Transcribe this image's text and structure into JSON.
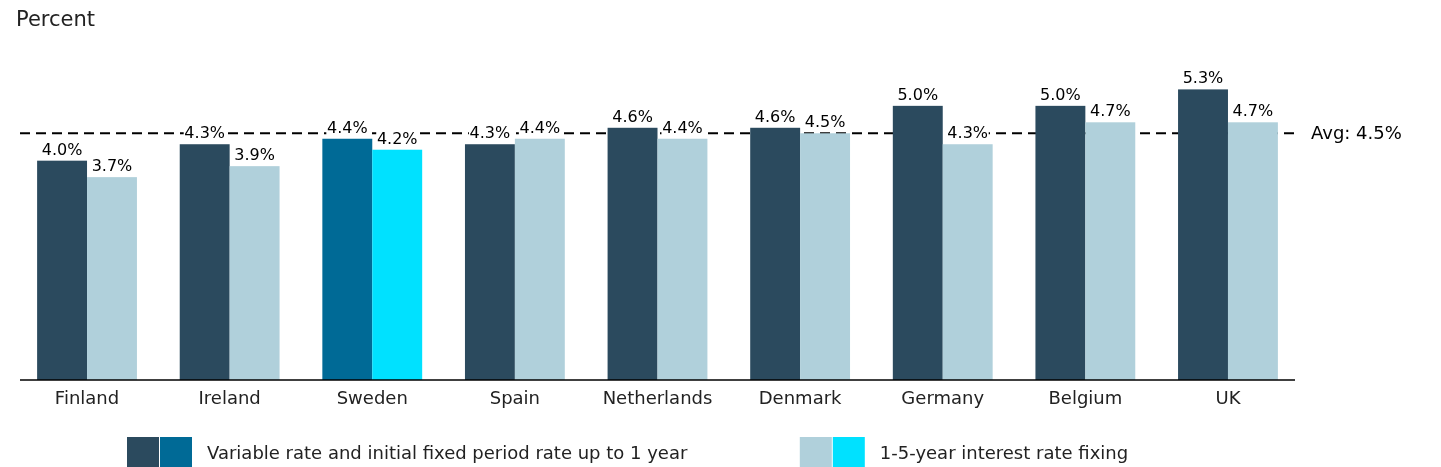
{
  "chart_data": {
    "type": "bar",
    "ylabel": "Percent",
    "categories": [
      "Finland",
      "Ireland",
      "Sweden",
      "Spain",
      "Netherlands",
      "Denmark",
      "Germany",
      "Belgium",
      "UK"
    ],
    "series": [
      {
        "name": "Variable rate and initial fixed period rate up to 1 year",
        "color": "#2b4a5e",
        "colors": [
          "#2b4a5e",
          "#2b4a5e",
          "#006a96",
          "#2b4a5e",
          "#2b4a5e",
          "#2b4a5e",
          "#2b4a5e",
          "#2b4a5e",
          "#2b4a5e"
        ],
        "values": [
          4.0,
          4.3,
          4.4,
          4.3,
          4.6,
          4.6,
          5.0,
          5.0,
          5.3
        ],
        "value_labels": [
          "4.0%",
          "4.3%",
          "4.4%",
          "4.3%",
          "4.6%",
          "4.6%",
          "5.0%",
          "5.0%",
          "5.3%"
        ]
      },
      {
        "name": "1-5-year interest rate fixing",
        "color": "#b0d0db",
        "colors": [
          "#b0d0db",
          "#b0d0db",
          "#00e1ff",
          "#b0d0db",
          "#b0d0db",
          "#b0d0db",
          "#b0d0db",
          "#b0d0db",
          "#b0d0db"
        ],
        "values": [
          3.7,
          3.9,
          4.2,
          4.4,
          4.4,
          4.5,
          4.3,
          4.7,
          4.7
        ],
        "value_labels": [
          "3.7%",
          "3.9%",
          "4.2%",
          "4.4%",
          "4.4%",
          "4.5%",
          "4.3%",
          "4.7%",
          "4.7%"
        ]
      }
    ],
    "tick_labels": "x",
    "legend": "bottom",
    "ref_lines": [
      {
        "axis": "y",
        "value": 4.5,
        "label": "Avg: 4.5%",
        "color": "#000000",
        "line_style": "dashed"
      }
    ]
  }
}
